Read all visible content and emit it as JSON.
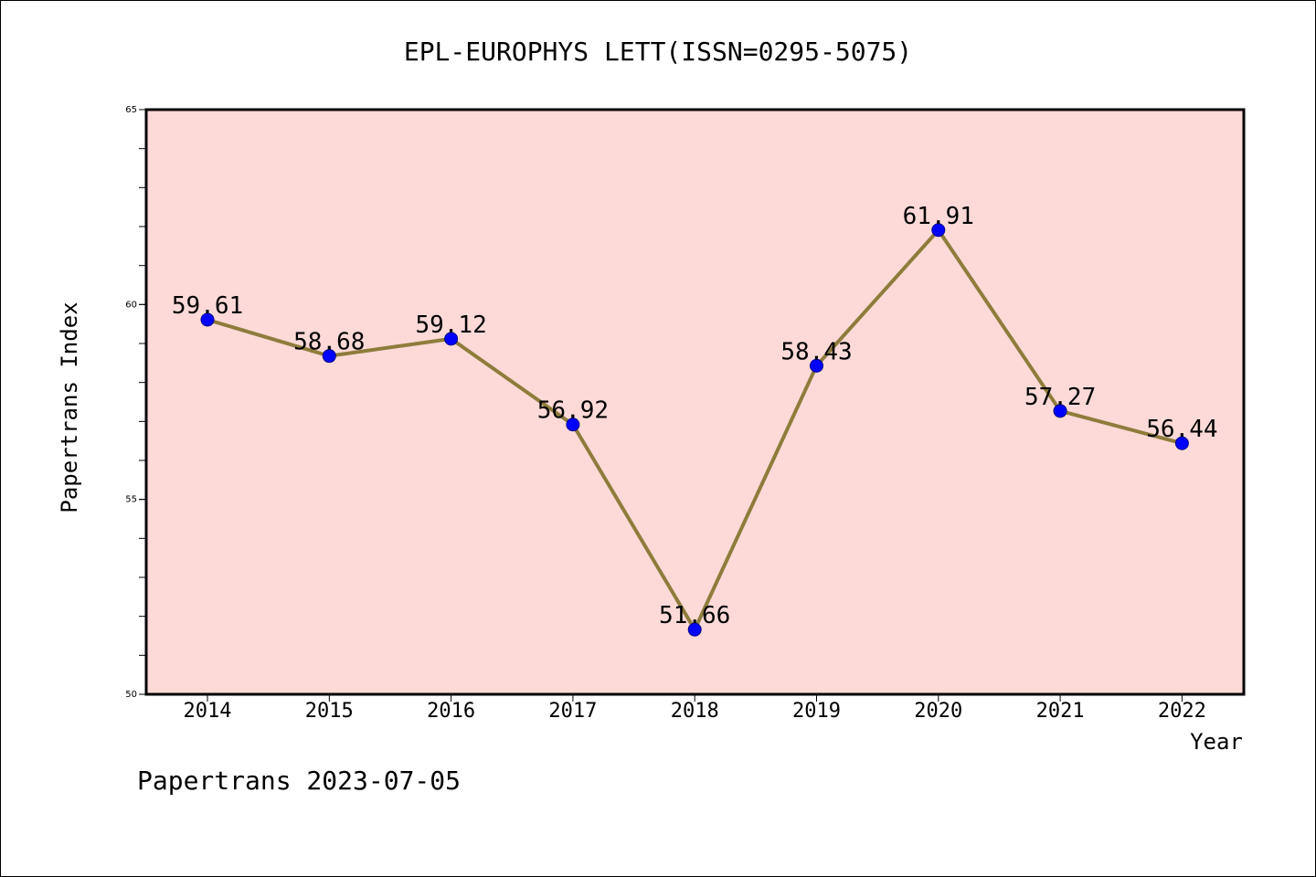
{
  "chart_data": {
    "type": "line",
    "title": "EPL-EUROPHYS LETT(ISSN=0295-5075)",
    "xlabel": "Year",
    "ylabel": "Papertrans Index",
    "categories": [
      "2014",
      "2015",
      "2016",
      "2017",
      "2018",
      "2019",
      "2020",
      "2021",
      "2022"
    ],
    "series": [
      {
        "values": [
          59.61,
          58.68,
          59.12,
          56.92,
          51.66,
          58.43,
          61.91,
          57.27,
          56.44
        ],
        "labels": [
          "59.61",
          "58.68",
          "59.12",
          "56.92",
          "51.66",
          "58.43",
          "61.91",
          "57.27",
          "56.44"
        ]
      }
    ],
    "ylim": [
      50,
      65
    ],
    "yticks": [
      50,
      55,
      60,
      65
    ],
    "ytick_labels": [
      "50",
      "55",
      "60",
      "65"
    ],
    "y_minor_step": 1,
    "grid": false,
    "colors": {
      "plot_background": "#fddad7",
      "line": "#8f7c3c",
      "marker": "#0000ff",
      "marker_edge": "#00008b"
    }
  },
  "footer": "Papertrans 2023-07-05"
}
